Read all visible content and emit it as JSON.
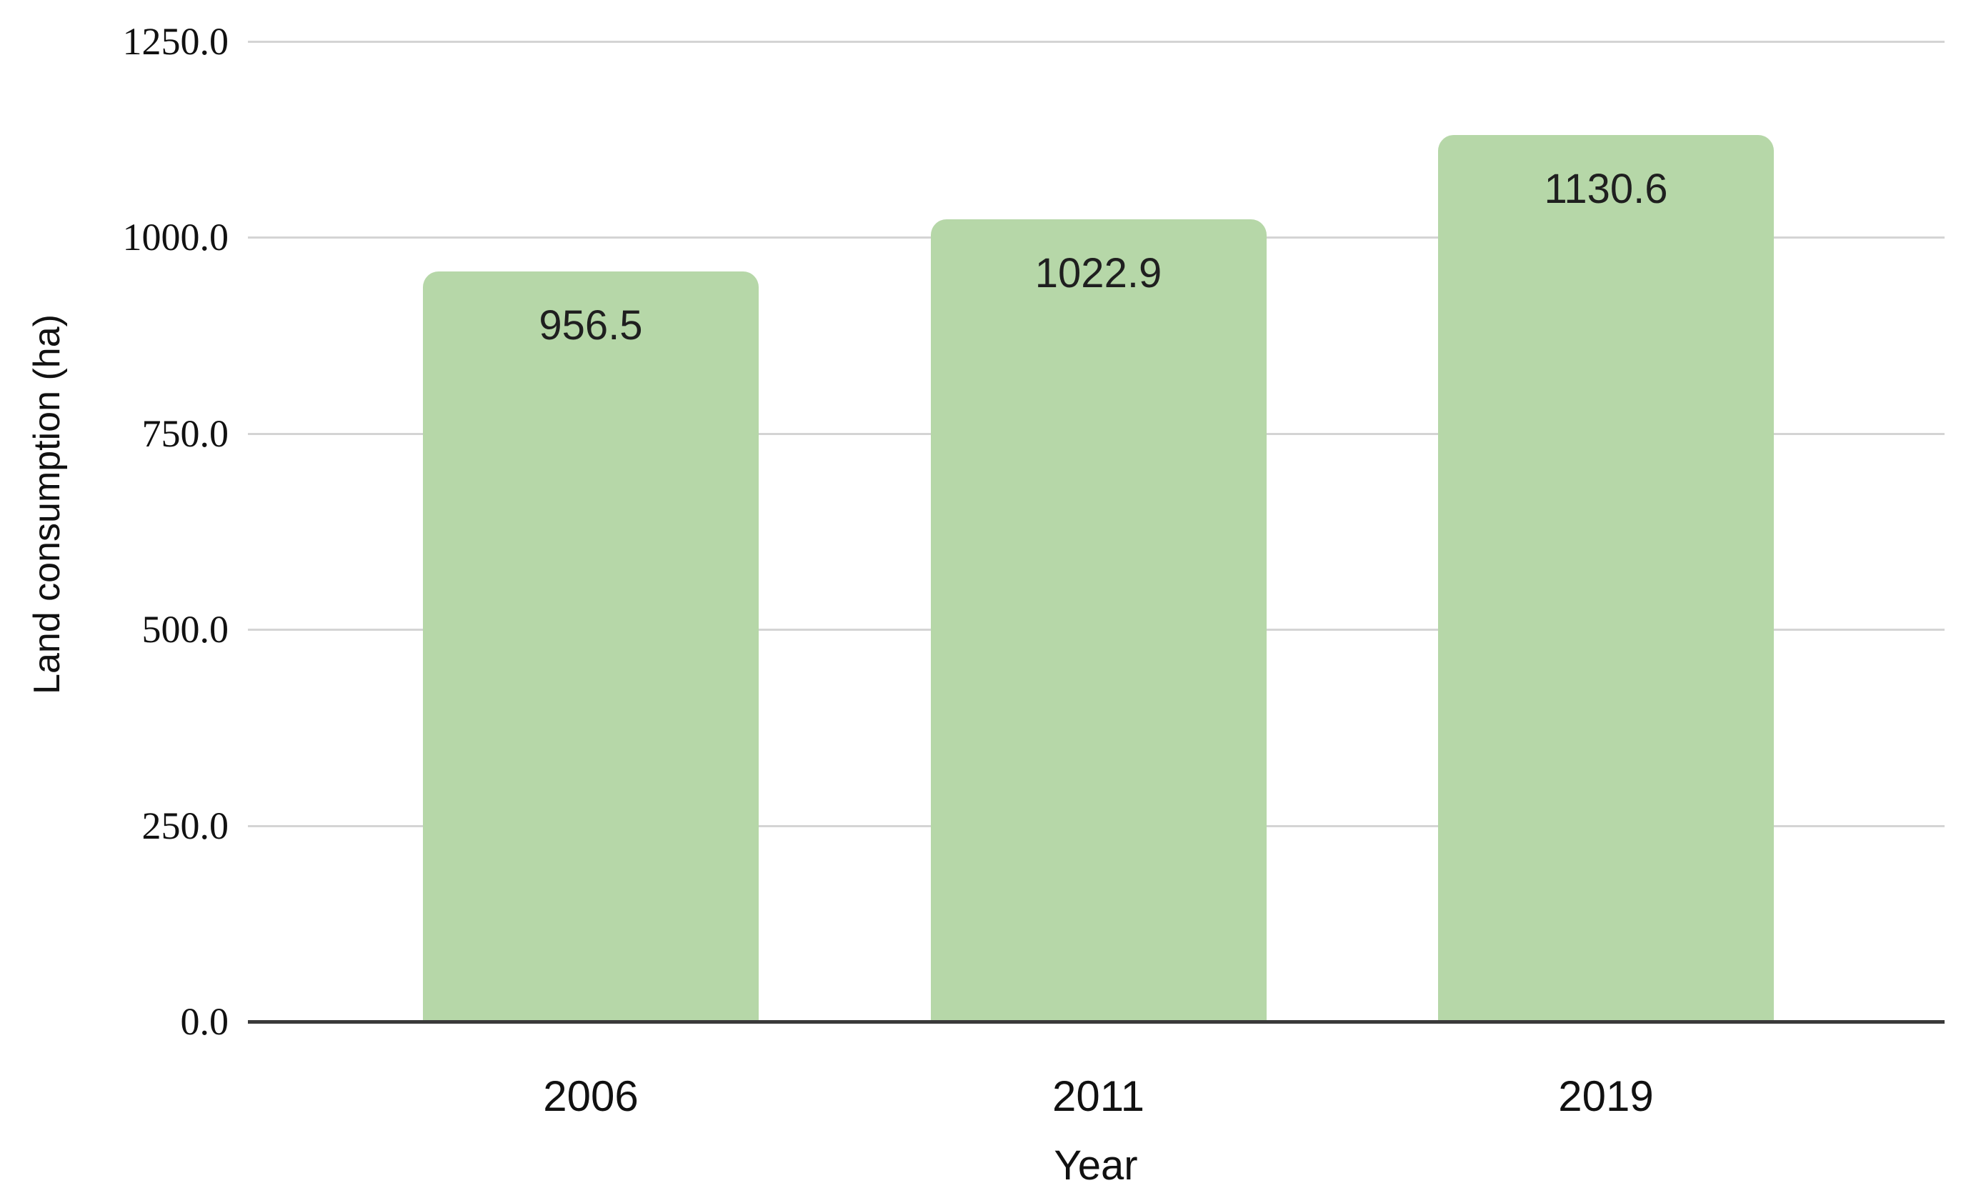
{
  "chart_data": {
    "type": "bar",
    "title": "",
    "categories": [
      "2006",
      "2011",
      "2019"
    ],
    "values": [
      956.5,
      1022.9,
      1130.6
    ],
    "value_labels": [
      "956.5",
      "1022.9",
      "1130.6"
    ],
    "xlabel": "Year",
    "ylabel": "Land consumption (ha)",
    "ytick_values": [
      0,
      250,
      500,
      750,
      1000,
      1250
    ],
    "ytick_labels": [
      "0.0",
      "250.0",
      "500.0",
      "750.0",
      "1000.0",
      "1250.0"
    ],
    "ylim": [
      0,
      1250
    ],
    "grid": true,
    "legend": false,
    "colors": {
      "bar": "#b6d7a8",
      "gridline": "#d4d4d4",
      "axis": "#3a3a3a",
      "tick_text": "#111111",
      "value_text": "#1f1f1f",
      "background": "#ffffff"
    }
  }
}
